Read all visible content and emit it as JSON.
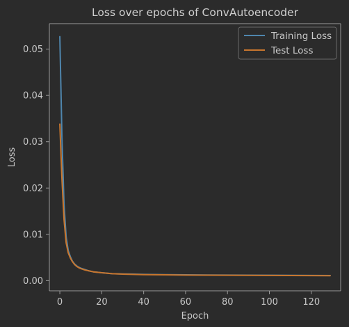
{
  "colors": {
    "background": "#2b2b2b",
    "plot_background": "#2b2b2b",
    "axis": "#9a9a9a",
    "text": "#c8c8c8",
    "title": "#cfcfcf",
    "training": "#4f86ad",
    "test": "#c8762e"
  },
  "chart_data": {
    "type": "line",
    "title": "Loss over epochs of ConvAutoencoder",
    "xlabel": "Epoch",
    "ylabel": "Loss",
    "xlim": [
      -5,
      134
    ],
    "ylim": [
      -0.0022,
      0.0555
    ],
    "xticks": [
      0,
      20,
      40,
      60,
      80,
      100,
      120
    ],
    "yticks": [
      0.0,
      0.01,
      0.02,
      0.03,
      0.04,
      0.05
    ],
    "ytick_labels": [
      "0.00",
      "0.01",
      "0.02",
      "0.03",
      "0.04",
      "0.05"
    ],
    "grid": false,
    "legend_position": "top-right",
    "series": [
      {
        "name": "Training Loss",
        "color": "#4f86ad",
        "x": [
          0,
          1,
          2,
          3,
          4,
          5,
          6,
          7,
          8,
          9,
          10,
          12,
          14,
          16,
          18,
          20,
          25,
          30,
          35,
          40,
          50,
          60,
          70,
          80,
          90,
          100,
          110,
          120,
          129
        ],
        "y": [
          0.0527,
          0.031,
          0.0165,
          0.0095,
          0.0065,
          0.0052,
          0.0042,
          0.0036,
          0.0032,
          0.0029,
          0.0027,
          0.0024,
          0.0021,
          0.0019,
          0.0018,
          0.0017,
          0.0015,
          0.00145,
          0.0014,
          0.00135,
          0.0013,
          0.00125,
          0.00122,
          0.0012,
          0.00118,
          0.00116,
          0.00114,
          0.00112,
          0.0011
        ]
      },
      {
        "name": "Test Loss",
        "color": "#c8762e",
        "x": [
          0,
          1,
          2,
          3,
          4,
          5,
          6,
          7,
          8,
          9,
          10,
          12,
          14,
          16,
          18,
          20,
          25,
          30,
          35,
          40,
          50,
          60,
          70,
          80,
          90,
          100,
          110,
          120,
          129
        ],
        "y": [
          0.0338,
          0.022,
          0.0132,
          0.0082,
          0.006,
          0.0049,
          0.0041,
          0.0035,
          0.0031,
          0.0028,
          0.0026,
          0.0023,
          0.0021,
          0.0019,
          0.0018,
          0.0017,
          0.0015,
          0.0014,
          0.00135,
          0.0013,
          0.00125,
          0.0012,
          0.00118,
          0.00116,
          0.00114,
          0.00112,
          0.0011,
          0.00108,
          0.00106
        ]
      }
    ]
  }
}
